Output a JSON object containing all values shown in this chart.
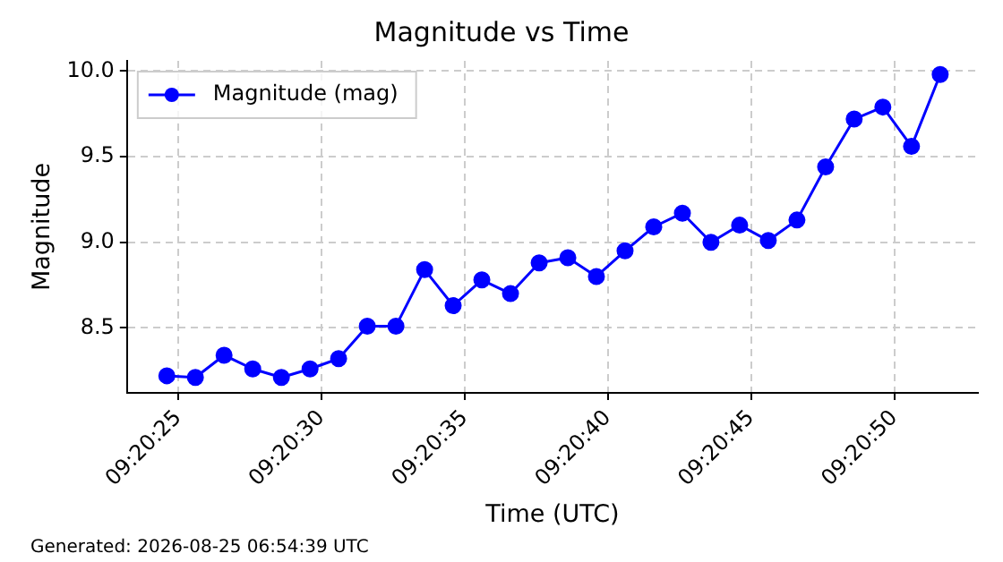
{
  "chart_data": {
    "type": "line",
    "title": "Magnitude vs Time",
    "xlabel": "Time (UTC)",
    "ylabel": "Magnitude",
    "x": [
      9.340167,
      9.340444,
      9.340722,
      9.341,
      9.341278,
      9.341556,
      9.341833,
      9.342111,
      9.342389,
      9.342667,
      9.342944,
      9.343222,
      9.3435,
      9.343778,
      9.344056,
      9.344333,
      9.344611,
      9.344889,
      9.345167,
      9.345444,
      9.345722,
      9.346,
      9.346278,
      9.346556,
      9.346833,
      9.347111,
      9.347389,
      9.347667
    ],
    "series": [
      {
        "name": "Magnitude (mag)",
        "color": "#0000ff",
        "values": [
          8.22,
          8.21,
          8.34,
          8.26,
          8.21,
          8.26,
          8.32,
          8.51,
          8.51,
          8.84,
          8.63,
          8.78,
          8.7,
          8.88,
          8.91,
          8.8,
          8.95,
          9.09,
          9.17,
          9.0,
          9.1,
          9.01,
          9.13,
          9.44,
          9.72,
          9.79,
          9.56,
          9.98
        ]
      }
    ],
    "xlim": [
      9.339781,
      9.348033
    ],
    "xticks": [
      {
        "value": 9.340278,
        "label": "09:20:25"
      },
      {
        "value": 9.341667,
        "label": "09:20:30"
      },
      {
        "value": 9.343056,
        "label": "09:20:35"
      },
      {
        "value": 9.344444,
        "label": "09:20:40"
      },
      {
        "value": 9.345833,
        "label": "09:20:45"
      },
      {
        "value": 9.347222,
        "label": "09:20:50"
      }
    ],
    "ylim": [
      8.12,
      10.06
    ],
    "yticks": [
      {
        "value": 8.5,
        "label": "8.5"
      },
      {
        "value": 9.0,
        "label": "9.0"
      },
      {
        "value": 9.5,
        "label": "9.5"
      },
      {
        "value": 10.0,
        "label": "10.0"
      }
    ],
    "grid": true,
    "legend": "top left",
    "marker": "circle",
    "line_style": "solid",
    "annotations": [
      "Generated: 2026-08-25 06:54:39 UTC"
    ]
  }
}
